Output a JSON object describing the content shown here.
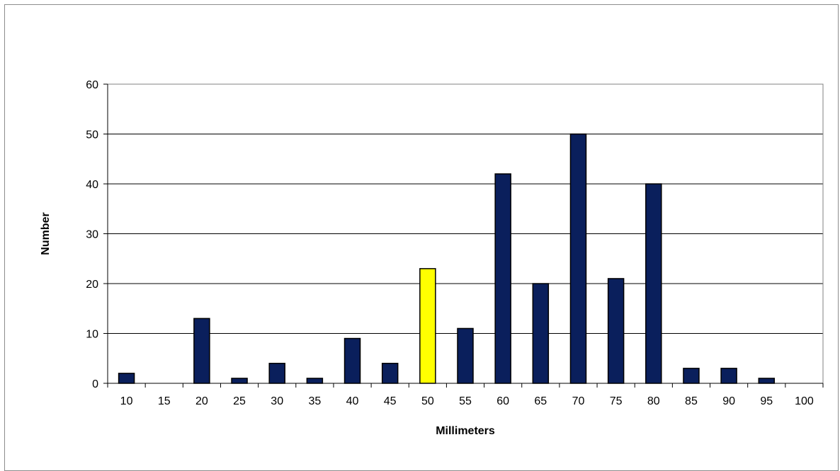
{
  "chart_data": {
    "type": "bar",
    "xlabel": "Millimeters",
    "ylabel": "Number",
    "ylim": [
      0,
      60
    ],
    "yticks": [
      "0",
      "10",
      "20",
      "30",
      "40",
      "50",
      "60"
    ],
    "grid": true,
    "categories": [
      "10",
      "15",
      "20",
      "25",
      "30",
      "35",
      "40",
      "45",
      "50",
      "55",
      "60",
      "65",
      "70",
      "75",
      "80",
      "85",
      "90",
      "95",
      "100"
    ],
    "values": [
      2,
      0,
      13,
      1,
      4,
      1,
      9,
      4,
      23,
      11,
      42,
      20,
      50,
      21,
      40,
      3,
      3,
      1,
      0
    ],
    "highlight_category": "50",
    "colors": {
      "bar": "#0a1f5c",
      "highlight": "#ffff00",
      "gridline": "#000000",
      "plot_border": "#808080"
    }
  }
}
